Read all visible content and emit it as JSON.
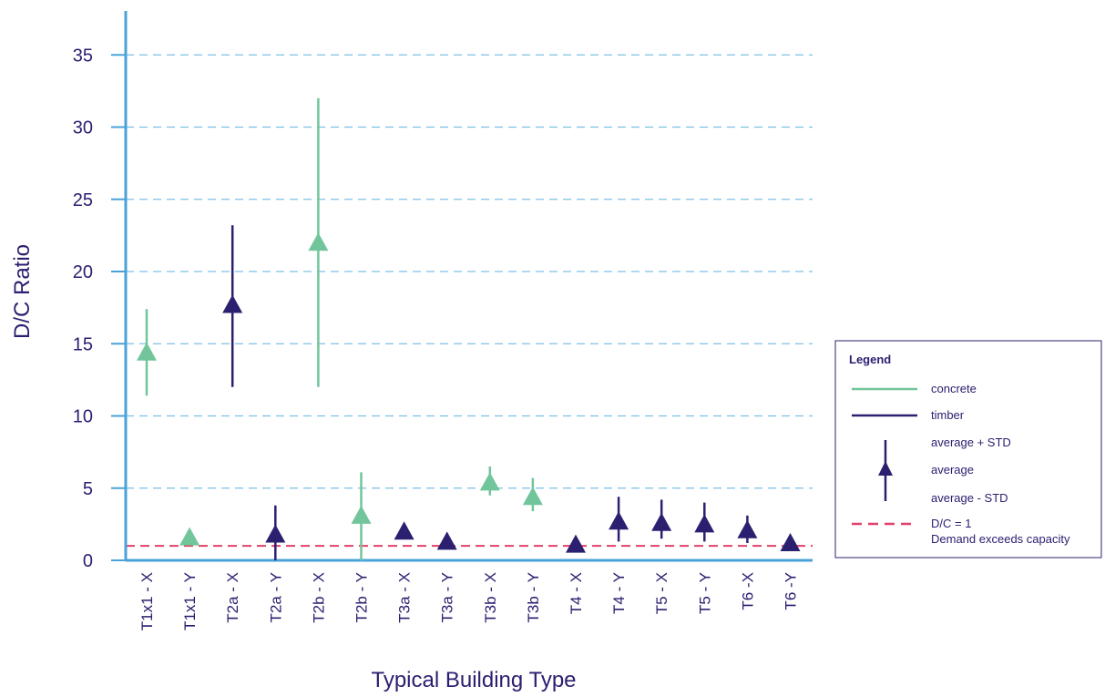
{
  "chart_data": {
    "type": "scatter",
    "xlabel": "Typical Building Type",
    "ylabel": "D/C Ratio",
    "ylim": [
      0,
      38
    ],
    "yticks": [
      0,
      5,
      10,
      15,
      20,
      25,
      30,
      35
    ],
    "grid": "horizontal dashed",
    "categories": [
      "T1x1 - X",
      "T1x1 - Y",
      "T2a - X",
      "T2a - Y",
      "T2b - X",
      "T2b - Y",
      "T3a - X",
      "T3a - Y",
      "T3b - X",
      "T3b - Y",
      "T4 - X",
      "T4 - Y",
      "T5 - X",
      "T5 - Y",
      "T6 -X",
      "T6 -Y"
    ],
    "points": [
      {
        "category": "T1x1 - X",
        "material": "concrete",
        "average": 14.4,
        "plus_std": 17.4,
        "minus_std": 11.4
      },
      {
        "category": "T1x1 - Y",
        "material": "concrete",
        "average": 1.6,
        "plus_std": 1.6,
        "minus_std": 1.6
      },
      {
        "category": "T2a - X",
        "material": "timber",
        "average": 17.7,
        "plus_std": 23.2,
        "minus_std": 12.0
      },
      {
        "category": "T2a - Y",
        "material": "timber",
        "average": 1.8,
        "plus_std": 3.8,
        "minus_std": 0.0
      },
      {
        "category": "T2b - X",
        "material": "concrete",
        "average": 22.0,
        "plus_std": 32.0,
        "minus_std": 12.0
      },
      {
        "category": "T2b - Y",
        "material": "concrete",
        "average": 3.1,
        "plus_std": 6.1,
        "minus_std": 0.0
      },
      {
        "category": "T3a - X",
        "material": "timber",
        "average": 2.0,
        "plus_std": 2.0,
        "minus_std": 2.0
      },
      {
        "category": "T3a - Y",
        "material": "timber",
        "average": 1.3,
        "plus_std": 1.3,
        "minus_std": 1.3
      },
      {
        "category": "T3b - X",
        "material": "concrete",
        "average": 5.4,
        "plus_std": 6.5,
        "minus_std": 4.5
      },
      {
        "category": "T3b - Y",
        "material": "concrete",
        "average": 4.4,
        "plus_std": 5.7,
        "minus_std": 3.4
      },
      {
        "category": "T4 - X",
        "material": "timber",
        "average": 1.1,
        "plus_std": 1.1,
        "minus_std": 1.1
      },
      {
        "category": "T4 - Y",
        "material": "timber",
        "average": 2.7,
        "plus_std": 4.4,
        "minus_std": 1.3
      },
      {
        "category": "T5 - X",
        "material": "timber",
        "average": 2.6,
        "plus_std": 4.2,
        "minus_std": 1.5
      },
      {
        "category": "T5 - Y",
        "material": "timber",
        "average": 2.5,
        "plus_std": 4.0,
        "minus_std": 1.3
      },
      {
        "category": "T6 -X",
        "material": "timber",
        "average": 2.1,
        "plus_std": 3.1,
        "minus_std": 1.2
      },
      {
        "category": "T6 -Y",
        "material": "timber",
        "average": 1.2,
        "plus_std": 1.2,
        "minus_std": 1.2
      }
    ],
    "threshold": {
      "value": 1,
      "label": "D/C = 1",
      "sublabel": "Demand exceeds capacity"
    },
    "legend": {
      "title": "Legend",
      "placement": "right",
      "entries": [
        {
          "label": "concrete",
          "color": "#72c59a"
        },
        {
          "label": "timber",
          "color": "#2b2070"
        }
      ],
      "marker_labels": [
        "average + STD",
        "average",
        "average - STD"
      ]
    },
    "colors": {
      "concrete": "#72c59a",
      "timber": "#2b2070",
      "axis": "#4aa3d8",
      "grid": "#7cc0e6",
      "threshold": "#e0406a",
      "text": "#2b2070"
    }
  }
}
